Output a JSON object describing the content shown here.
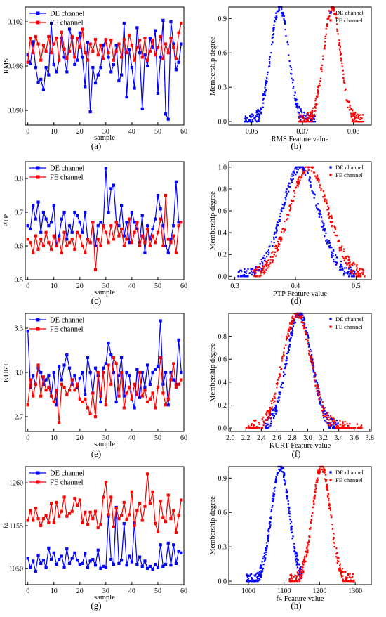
{
  "colors": {
    "de": "#0000ff",
    "fe": "#ff0000",
    "axis": "#000000"
  },
  "chart_data": [
    {
      "panel_label": "(a)",
      "type": "line",
      "xlabel": "sample",
      "ylabel": "RMS",
      "xlim": [
        -1,
        60
      ],
      "ylim": [
        0.088,
        0.104
      ],
      "xticks": [
        "0",
        "10",
        "20",
        "30",
        "40",
        "50",
        "60"
      ],
      "xtick_values": [
        0,
        10,
        20,
        30,
        40,
        50,
        60
      ],
      "yticks": [
        "0.090",
        "0.096",
        "0.102"
      ],
      "ytick_values": [
        0.09,
        0.096,
        0.102
      ],
      "legend": "top-left",
      "series": [
        {
          "name": "DE channel",
          "marker": "square",
          "values": [
            0.0975,
            0.0963,
            0.0993,
            0.0958,
            0.0938,
            0.0942,
            0.0928,
            0.0958,
            0.0948,
            0.1018,
            0.0962,
            0.0952,
            0.0968,
            0.0998,
            0.0972,
            0.0952,
            0.101,
            0.0998,
            0.0962,
            0.0968,
            0.1005,
            0.0972,
            0.0932,
            0.0992,
            0.0898,
            0.0958,
            0.0937,
            0.0948,
            0.0958,
            0.0988,
            0.0995,
            0.0972,
            0.0952,
            0.0962,
            0.0988,
            0.094,
            0.0948,
            0.1018,
            0.0918,
            0.0982,
            0.0958,
            0.093,
            0.1012,
            0.0978,
            0.0902,
            0.0975,
            0.096,
            0.0998,
            0.0985,
            0.1008,
            0.0923,
            0.0972,
            0.1022,
            0.0895,
            0.0888,
            0.102,
            0.099,
            0.0955,
            0.0965,
            0.099
          ]
        },
        {
          "name": "FE channel",
          "marker": "square",
          "values": [
            0.0965,
            0.0998,
            0.0978,
            0.1,
            0.099,
            0.0968,
            0.0988,
            0.098,
            0.1,
            0.0978,
            0.099,
            0.0998,
            0.0968,
            0.1006,
            0.0983,
            0.097,
            0.098,
            0.1,
            0.0972,
            0.0998,
            0.0985,
            0.101,
            0.0978,
            0.0968,
            0.099,
            0.098,
            0.0996,
            0.0975,
            0.0988,
            0.097,
            0.0996,
            0.0978,
            0.0995,
            0.0968,
            0.098,
            0.099,
            0.0972,
            0.0996,
            0.0978,
            0.1002,
            0.0988,
            0.0968,
            0.0985,
            0.0995,
            0.0972,
            0.0998,
            0.0968,
            0.098,
            0.0995,
            0.0975,
            0.0985,
            0.1,
            0.097,
            0.099,
            0.0978,
            0.0998,
            0.0985,
            0.097,
            0.1005,
            0.1018
          ]
        }
      ]
    },
    {
      "panel_label": "(b)",
      "type": "scatter",
      "xlabel": "RMS Feature value",
      "ylabel": "Membership degree",
      "xlim": [
        0.0555,
        0.0835
      ],
      "ylim": [
        -0.03,
        1.0
      ],
      "xticks": [
        "0.06",
        "0.07",
        "0.08"
      ],
      "xtick_values": [
        0.06,
        0.07,
        0.08
      ],
      "yticks": [
        "0.0",
        "0.3",
        "0.6",
        "0.9"
      ],
      "ytick_values": [
        0,
        0.3,
        0.6,
        0.9
      ],
      "legend": "top-right",
      "series": [
        {
          "name": "DE channel",
          "distribution": "gaussian",
          "center": 0.0655,
          "sigma": 0.00175,
          "x_range": [
            0.0585,
            0.0725
          ],
          "points": 260
        },
        {
          "name": "FE  channel",
          "distribution": "gaussian",
          "center": 0.0758,
          "sigma": 0.00165,
          "x_range": [
            0.0692,
            0.082
          ],
          "points": 260
        }
      ]
    },
    {
      "panel_label": "(c)",
      "type": "line",
      "xlabel": "sample",
      "ylabel": "PTP",
      "xlim": [
        -1,
        60
      ],
      "ylim": [
        0.5,
        0.85
      ],
      "xticks": [
        "0",
        "10",
        "20",
        "30",
        "40",
        "50",
        "60"
      ],
      "xtick_values": [
        0,
        10,
        20,
        30,
        40,
        50,
        60
      ],
      "yticks": [
        "0.5",
        "0.6",
        "0.7",
        "0.8"
      ],
      "ytick_values": [
        0.5,
        0.6,
        0.7,
        0.8
      ],
      "legend": "top-left",
      "series": [
        {
          "name": "DE channel",
          "marker": "square",
          "values": [
            0.66,
            0.65,
            0.72,
            0.68,
            0.73,
            0.64,
            0.7,
            0.68,
            0.66,
            0.67,
            0.72,
            0.6,
            0.63,
            0.68,
            0.7,
            0.62,
            0.66,
            0.64,
            0.7,
            0.69,
            0.67,
            0.64,
            0.7,
            0.62,
            0.61,
            0.67,
            0.6,
            0.66,
            0.67,
            0.66,
            0.83,
            0.7,
            0.77,
            0.78,
            0.67,
            0.66,
            0.72,
            0.63,
            0.67,
            0.61,
            0.7,
            0.67,
            0.65,
            0.61,
            0.69,
            0.58,
            0.66,
            0.62,
            0.65,
            0.68,
            0.75,
            0.71,
            0.66,
            0.6,
            0.58,
            0.62,
            0.66,
            0.79,
            0.67,
            0.67
          ]
        },
        {
          "name": "FE  channel",
          "marker": "square",
          "values": [
            0.62,
            0.61,
            0.58,
            0.63,
            0.59,
            0.62,
            0.6,
            0.64,
            0.61,
            0.59,
            0.63,
            0.6,
            0.62,
            0.58,
            0.64,
            0.6,
            0.61,
            0.62,
            0.59,
            0.64,
            0.63,
            0.6,
            0.58,
            0.62,
            0.61,
            0.67,
            0.53,
            0.62,
            0.6,
            0.66,
            0.64,
            0.61,
            0.66,
            0.62,
            0.67,
            0.63,
            0.65,
            0.6,
            0.62,
            0.68,
            0.61,
            0.64,
            0.67,
            0.6,
            0.63,
            0.61,
            0.65,
            0.6,
            0.63,
            0.61,
            0.64,
            0.68,
            0.6,
            0.75,
            0.62,
            0.61,
            0.63,
            0.58,
            0.66,
            0.67
          ]
        }
      ]
    },
    {
      "panel_label": "(d)",
      "type": "scatter",
      "xlabel": "PTP Feature value",
      "ylabel": "Membership degree",
      "xlim": [
        0.29,
        0.525
      ],
      "ylim": [
        -0.03,
        1.05
      ],
      "xticks": [
        "0.3",
        "0.4",
        "0.5"
      ],
      "xtick_values": [
        0.3,
        0.4,
        0.5
      ],
      "yticks": [
        "0.0",
        "0.2",
        "0.4",
        "0.6",
        "0.8",
        "1.0"
      ],
      "ytick_values": [
        0,
        0.2,
        0.4,
        0.6,
        0.8,
        1.0
      ],
      "legend": "top-right",
      "series": [
        {
          "name": "DE channel",
          "distribution": "gaussian",
          "center": 0.408,
          "sigma": 0.03,
          "x_range": [
            0.305,
            0.5
          ],
          "points": 300
        },
        {
          "name": "FE  channel",
          "distribution": "gaussian",
          "center": 0.422,
          "sigma": 0.032,
          "x_range": [
            0.33,
            0.515
          ],
          "points": 300
        }
      ]
    },
    {
      "panel_label": "(e)",
      "type": "line",
      "xlabel": "sample",
      "ylabel": "KURT",
      "xlim": [
        -1,
        60
      ],
      "ylim": [
        2.6,
        3.4
      ],
      "xticks": [
        "0",
        "10",
        "20",
        "30",
        "40",
        "50",
        "60"
      ],
      "xtick_values": [
        0,
        10,
        20,
        30,
        40,
        50,
        60
      ],
      "yticks": [
        "2.7",
        "3.0",
        "3.3"
      ],
      "ytick_values": [
        2.7,
        3.0,
        3.3
      ],
      "legend": "top-left",
      "series": [
        {
          "name": "DE channel",
          "marker": "square",
          "values": [
            3.28,
            2.9,
            2.98,
            2.92,
            3.03,
            3.0,
            2.92,
            2.95,
            2.98,
            2.84,
            3.0,
            2.78,
            3.04,
            2.95,
            3.05,
            3.12,
            3.03,
            2.92,
            2.98,
            2.9,
            2.96,
            3.0,
            2.85,
            3.1,
            3.0,
            2.86,
            3.03,
            2.98,
            2.8,
            3.03,
            3.06,
            3.2,
            3.12,
            3.0,
            2.8,
            2.98,
            3.1,
            2.84,
            3.0,
            2.98,
            2.82,
            2.76,
            3.02,
            2.83,
            3.0,
            2.9,
            3.05,
            2.92,
            3.0,
            3.02,
            3.04,
            3.35,
            2.92,
            3.0,
            2.78,
            3.0,
            2.95,
            2.92,
            3.22,
            3.0
          ]
        },
        {
          "name": "FE  channel",
          "marker": "square",
          "values": [
            2.78,
            2.95,
            2.84,
            2.92,
            3.05,
            2.84,
            2.97,
            2.88,
            2.9,
            2.84,
            2.8,
            2.88,
            2.66,
            2.92,
            2.9,
            2.85,
            2.88,
            2.95,
            2.88,
            2.92,
            2.82,
            2.8,
            2.82,
            2.76,
            2.72,
            2.86,
            2.7,
            3.0,
            2.84,
            3.0,
            2.78,
            3.05,
            2.92,
            3.1,
            3.06,
            2.84,
            3.0,
            2.76,
            2.86,
            2.9,
            2.82,
            2.92,
            2.85,
            3.0,
            2.84,
            2.88,
            2.8,
            2.82,
            2.86,
            2.76,
            2.9,
            3.1,
            2.86,
            2.78,
            2.82,
            2.95,
            3.06,
            2.9,
            2.92,
            2.95
          ]
        }
      ]
    },
    {
      "panel_label": "(f)",
      "type": "scatter",
      "xlabel": "KURT Feature value",
      "ylabel": "Membership degree",
      "xlim": [
        1.98,
        3.82
      ],
      "ylim": [
        -0.03,
        1.0
      ],
      "xticks": [
        "2.0",
        "2.2",
        "2.4",
        "2.6",
        "2.8",
        "3.0",
        "3.2",
        "3.4",
        "3.6",
        "3.8"
      ],
      "xtick_values": [
        2.0,
        2.2,
        2.4,
        2.6,
        2.8,
        3.0,
        3.2,
        3.4,
        3.6,
        3.8
      ],
      "yticks": [
        "0.0",
        "0.2",
        "0.4",
        "0.6",
        "0.8"
      ],
      "ytick_values": [
        0,
        0.2,
        0.4,
        0.6,
        0.8
      ],
      "legend": "top-right",
      "series": [
        {
          "name": "DE channel",
          "distribution": "gaussian",
          "center": 2.89,
          "sigma": 0.16,
          "x_range": [
            2.45,
            3.4
          ],
          "points": 320
        },
        {
          "name": "FE  channel",
          "distribution": "gaussian",
          "center": 2.86,
          "sigma": 0.18,
          "x_range": [
            2.2,
            3.7
          ],
          "points": 320
        }
      ]
    },
    {
      "panel_label": "(g)",
      "type": "line",
      "xlabel": "sample",
      "ylabel": "f4",
      "xlim": [
        -1,
        60
      ],
      "ylim": [
        1010,
        1300
      ],
      "xticks": [
        "0",
        "10",
        "20",
        "30",
        "40",
        "50",
        "60"
      ],
      "xtick_values": [
        0,
        10,
        20,
        30,
        40,
        50,
        60
      ],
      "yticks": [
        "1050",
        "1155",
        "1260"
      ],
      "ytick_values": [
        1050,
        1155,
        1260
      ],
      "legend": "top-left",
      "series": [
        {
          "name": "DE channel",
          "marker": "square",
          "values": [
            1075,
            1052,
            1068,
            1043,
            1082,
            1062,
            1070,
            1052,
            1100,
            1072,
            1088,
            1060,
            1072,
            1080,
            1053,
            1098,
            1062,
            1075,
            1088,
            1070,
            1060,
            1062,
            1087,
            1052,
            1068,
            1072,
            1058,
            1095,
            1050,
            1055,
            1052,
            1178,
            1072,
            1060,
            1200,
            1062,
            1070,
            1160,
            1058,
            1080,
            1066,
            1162,
            1060,
            1078,
            1055,
            1068,
            1050,
            1055,
            1048,
            1060,
            1052,
            1108,
            1055,
            1060,
            1112,
            1058,
            1108,
            1062,
            1092,
            1088
          ]
        },
        {
          "name": "FE  channel",
          "marker": "square",
          "values": [
            1168,
            1192,
            1168,
            1198,
            1172,
            1155,
            1172,
            1180,
            1162,
            1210,
            1162,
            1212,
            1178,
            1190,
            1225,
            1178,
            1185,
            1190,
            1222,
            1205,
            1218,
            1162,
            1188,
            1158,
            1188,
            1172,
            1190,
            1150,
            1158,
            1225,
            1262,
            1182,
            1225,
            1152,
            1198,
            1172,
            1180,
            1212,
            1170,
            1182,
            1238,
            1155,
            1192,
            1210,
            1168,
            1202,
            1282,
            1210,
            1238,
            1160,
            1140,
            1215,
            1175,
            1165,
            1230,
            1172,
            1192,
            1138,
            1180,
            1218
          ]
        }
      ]
    },
    {
      "panel_label": "(h)",
      "type": "scatter",
      "xlabel": "f4 Feature value",
      "ylabel": "Membership degree",
      "xlim": [
        945,
        1345
      ],
      "ylim": [
        -0.03,
        1.0
      ],
      "xticks": [
        "1000",
        "1100",
        "1200",
        "1300"
      ],
      "xtick_values": [
        1000,
        1100,
        1200,
        1300
      ],
      "yticks": [
        "0.0",
        "0.3",
        "0.6",
        "0.9"
      ],
      "ytick_values": [
        0,
        0.3,
        0.6,
        0.9
      ],
      "legend": "top-right",
      "series": [
        {
          "name": "DE channel",
          "distribution": "gaussian",
          "center": 1090,
          "sigma": 25,
          "x_range": [
            995,
            1150
          ],
          "points": 300
        },
        {
          "name": "FE  channel",
          "distribution": "gaussian",
          "center": 1205,
          "sigma": 25,
          "x_range": [
            1115,
            1300
          ],
          "points": 300
        }
      ]
    }
  ]
}
